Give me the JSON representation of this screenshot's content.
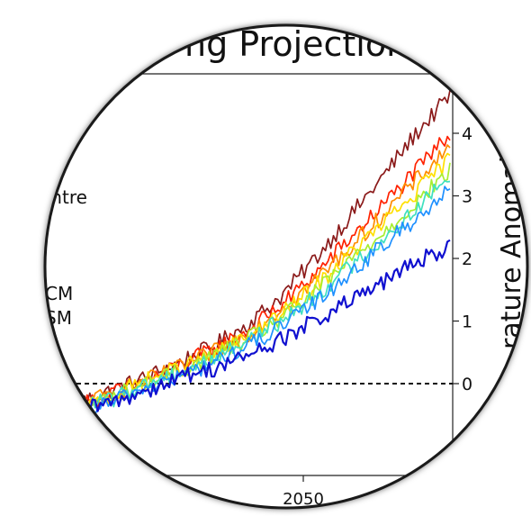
{
  "chart_data": {
    "type": "line",
    "title": "ng Projection",
    "ylabel": "rature Anomal",
    "x_ticks": [
      2050
    ],
    "y_ticks": [
      0,
      1,
      2,
      3,
      4
    ],
    "xlim": [
      2006,
      2100
    ],
    "ylim": [
      -0.6,
      4.8
    ],
    "zero_reference_line": true,
    "legend_fragments": [
      "entre",
      "CM",
      "SM",
      "–"
    ],
    "series": [
      {
        "color": "#8B1A1A",
        "end_value": 4.6,
        "values": [
          -0.3,
          -0.1,
          0.1,
          0.35,
          0.6,
          0.95,
          1.4,
          2.0,
          2.65,
          3.3,
          4.0,
          4.6
        ]
      },
      {
        "color": "#FF2200",
        "end_value": 4.0,
        "values": [
          -0.35,
          -0.15,
          0.05,
          0.3,
          0.55,
          0.85,
          1.25,
          1.75,
          2.3,
          2.85,
          3.4,
          4.0
        ]
      },
      {
        "color": "#FF8C00",
        "end_value": 3.8,
        "values": [
          -0.35,
          -0.15,
          0.05,
          0.25,
          0.5,
          0.8,
          1.2,
          1.65,
          2.15,
          2.7,
          3.25,
          3.8
        ]
      },
      {
        "color": "#FFE000",
        "end_value": 3.6,
        "values": [
          -0.4,
          -0.2,
          0.05,
          0.25,
          0.45,
          0.75,
          1.1,
          1.55,
          2.05,
          2.55,
          3.05,
          3.6
        ]
      },
      {
        "color": "#A8EE30",
        "end_value": 3.4,
        "values": [
          -0.4,
          -0.2,
          0.0,
          0.2,
          0.45,
          0.7,
          1.05,
          1.45,
          1.95,
          2.4,
          2.9,
          3.4
        ]
      },
      {
        "color": "#40E0C0",
        "end_value": 3.3,
        "values": [
          -0.4,
          -0.25,
          0.0,
          0.2,
          0.4,
          0.7,
          1.0,
          1.4,
          1.85,
          2.3,
          2.8,
          3.3
        ]
      },
      {
        "color": "#1E90FF",
        "end_value": 3.1,
        "values": [
          -0.45,
          -0.3,
          -0.05,
          0.1,
          0.35,
          0.6,
          0.9,
          1.3,
          1.75,
          2.2,
          2.65,
          3.1
        ]
      },
      {
        "color": "#1010D0",
        "end_value": 2.2,
        "values": [
          -0.45,
          -0.3,
          -0.1,
          0.1,
          0.25,
          0.45,
          0.7,
          1.0,
          1.3,
          1.6,
          1.95,
          2.2
        ]
      }
    ]
  }
}
